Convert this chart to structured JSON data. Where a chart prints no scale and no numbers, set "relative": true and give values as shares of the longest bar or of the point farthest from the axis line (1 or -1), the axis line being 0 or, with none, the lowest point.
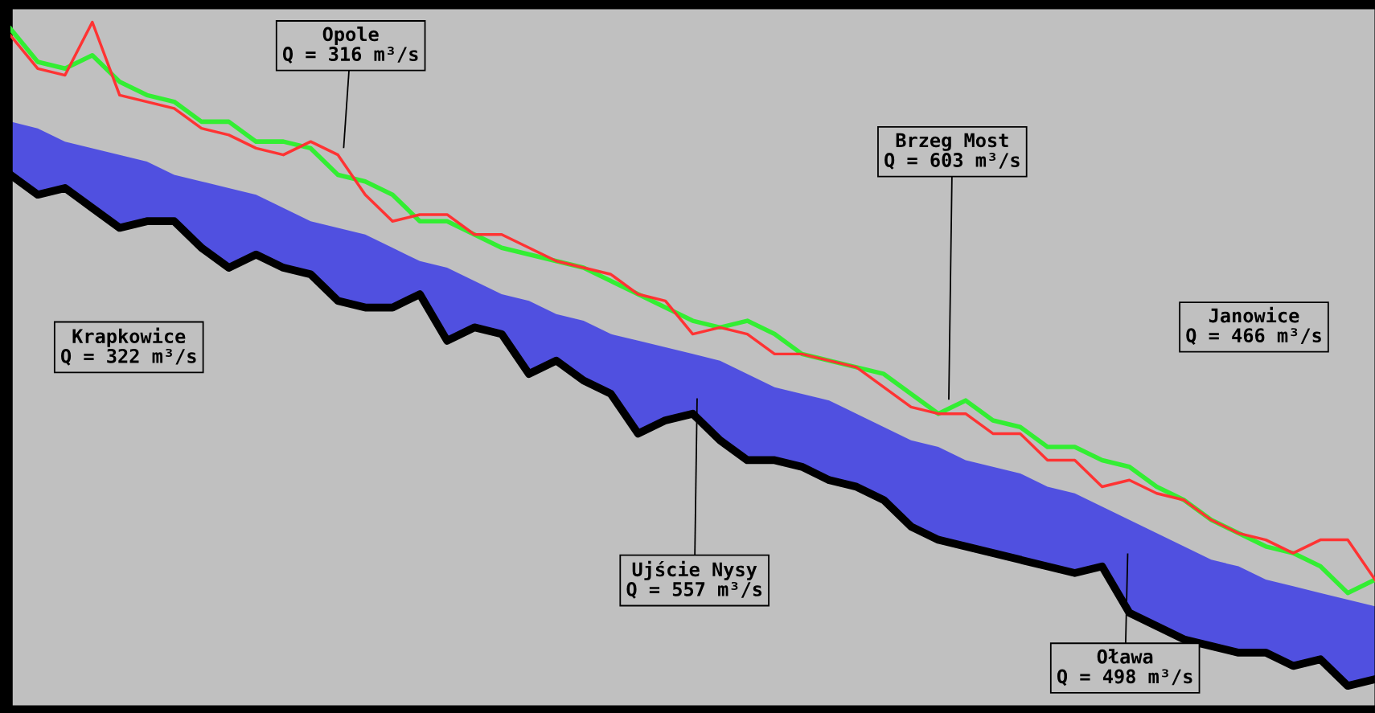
{
  "chart_data": {
    "type": "line",
    "relative": true,
    "categories": [
      null,
      null,
      null,
      null,
      null,
      null,
      null,
      null,
      null,
      null,
      null,
      null,
      null,
      null,
      null,
      null,
      null,
      null,
      null,
      null,
      null,
      null,
      null,
      null,
      null,
      null,
      null,
      null,
      null,
      null,
      null,
      null,
      null,
      null,
      null,
      null,
      null,
      null,
      null,
      null,
      null,
      null,
      null,
      null,
      null,
      null,
      null,
      null,
      null,
      null,
      null
    ],
    "series": [
      {
        "type": "area",
        "color": "#5050e0",
        "values": [
          0.85,
          0.84,
          0.82,
          0.81,
          0.8,
          0.79,
          0.77,
          0.76,
          0.75,
          0.74,
          0.72,
          0.7,
          0.69,
          0.68,
          0.66,
          0.64,
          0.63,
          0.61,
          0.59,
          0.58,
          0.56,
          0.55,
          0.53,
          0.52,
          0.51,
          0.5,
          0.49,
          0.47,
          0.45,
          0.44,
          0.43,
          0.41,
          0.39,
          0.37,
          0.36,
          0.34,
          0.33,
          0.32,
          0.3,
          0.29,
          0.27,
          0.25,
          0.23,
          0.21,
          0.19,
          0.18,
          0.16,
          0.15,
          0.14,
          0.13,
          0.12
        ]
      },
      {
        "color": "#000000",
        "values": [
          0.77,
          0.74,
          0.75,
          0.72,
          0.69,
          0.7,
          0.7,
          0.66,
          0.63,
          0.65,
          0.63,
          0.62,
          0.58,
          0.57,
          0.57,
          0.59,
          0.52,
          0.54,
          0.53,
          0.47,
          0.49,
          0.46,
          0.44,
          0.38,
          0.4,
          0.41,
          0.37,
          0.34,
          0.34,
          0.33,
          0.31,
          0.3,
          0.28,
          0.24,
          0.22,
          0.21,
          0.2,
          0.19,
          0.18,
          0.17,
          0.18,
          0.11,
          0.09,
          0.07,
          0.06,
          0.05,
          0.05,
          0.03,
          0.04,
          0,
          0.01
        ]
      },
      {
        "color": "#33ee33",
        "values": [
          0.99,
          0.94,
          0.93,
          0.95,
          0.91,
          0.89,
          0.88,
          0.85,
          0.85,
          0.82,
          0.82,
          0.81,
          0.77,
          0.76,
          0.74,
          0.7,
          0.7,
          0.68,
          0.66,
          0.65,
          0.64,
          0.63,
          0.61,
          0.59,
          0.57,
          0.55,
          0.54,
          0.55,
          0.53,
          0.5,
          0.49,
          0.48,
          0.47,
          0.44,
          0.41,
          0.43,
          0.4,
          0.39,
          0.36,
          0.36,
          0.34,
          0.33,
          0.3,
          0.28,
          0.25,
          0.23,
          0.21,
          0.2,
          0.18,
          0.14,
          0.16
        ]
      },
      {
        "color": "#ff3333",
        "values": [
          0.98,
          0.93,
          0.92,
          1.0,
          0.89,
          0.88,
          0.87,
          0.84,
          0.83,
          0.81,
          0.8,
          0.82,
          0.8,
          0.74,
          0.7,
          0.71,
          0.71,
          0.68,
          0.68,
          0.66,
          0.64,
          0.63,
          0.62,
          0.59,
          0.58,
          0.53,
          0.54,
          0.53,
          0.5,
          0.5,
          0.49,
          0.48,
          0.45,
          0.42,
          0.41,
          0.41,
          0.38,
          0.38,
          0.34,
          0.34,
          0.3,
          0.31,
          0.29,
          0.28,
          0.25,
          0.23,
          0.22,
          0.2,
          0.22,
          0.22,
          0.16
        ]
      }
    ],
    "annotations": [
      "Opole\nQ = 316 m³/s",
      "Krapkowice\nQ = 322 m³/s",
      "Brzeg Most\nQ = 603 m³/s",
      "Janowice\nQ = 466 m³/s",
      "Ujście Nysy\nQ = 557 m³/s",
      "Oława\nQ = 498 m³/s"
    ]
  }
}
